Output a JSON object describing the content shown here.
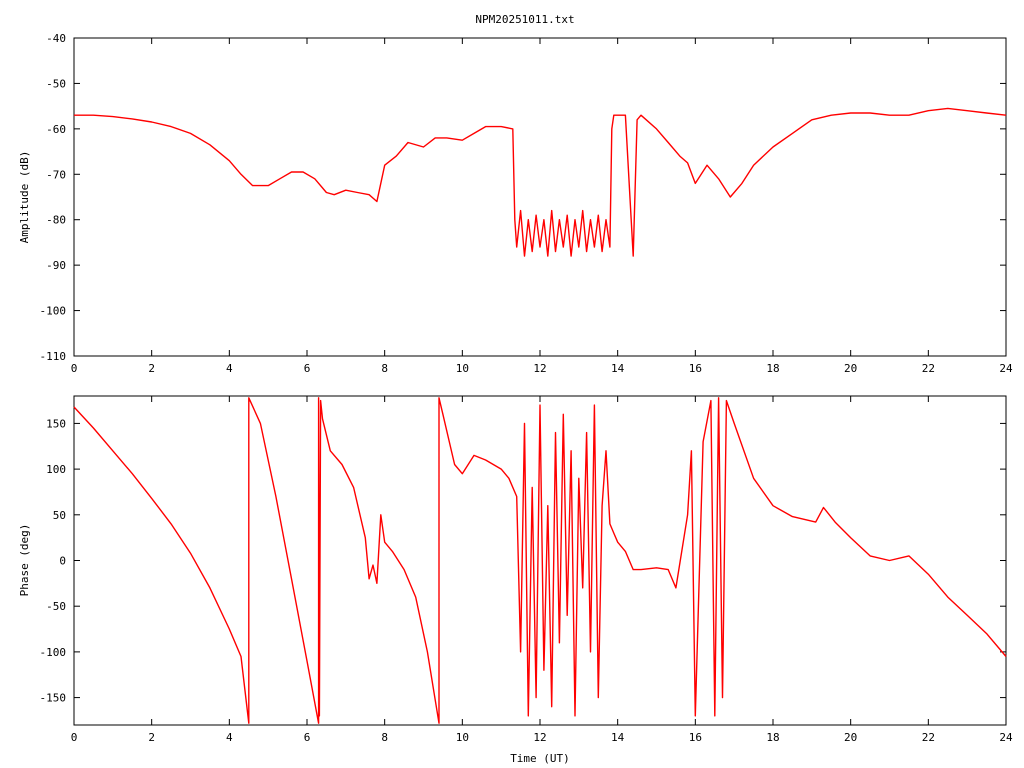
{
  "chart_data": [
    {
      "type": "line",
      "title": "NPM20251011.txt",
      "xlabel": "",
      "ylabel": "Amplitude (dB)",
      "xlim": [
        0,
        24
      ],
      "ylim": [
        -110,
        -40
      ],
      "xticks": [
        0,
        2,
        4,
        6,
        8,
        10,
        12,
        14,
        16,
        18,
        20,
        22,
        24
      ],
      "yticks": [
        -110,
        -100,
        -90,
        -80,
        -70,
        -60,
        -50,
        -40
      ],
      "grid": false,
      "color": "#ff0000",
      "series": [
        {
          "x": [
            0,
            0.5,
            1,
            1.5,
            2,
            2.5,
            3,
            3.5,
            4,
            4.3,
            4.6,
            5,
            5.3,
            5.6,
            5.9,
            6.2,
            6.5,
            6.7,
            7,
            7.3,
            7.6,
            7.8,
            8,
            8.3,
            8.6,
            9,
            9.3,
            9.6,
            10,
            10.3,
            10.6,
            11,
            11.3,
            11.35,
            11.4,
            11.5,
            11.6,
            11.7,
            11.8,
            11.9,
            12,
            12.1,
            12.2,
            12.3,
            12.4,
            12.5,
            12.6,
            12.7,
            12.8,
            12.9,
            13,
            13.1,
            13.2,
            13.3,
            13.4,
            13.5,
            13.6,
            13.7,
            13.8,
            13.85,
            13.9,
            14,
            14.2,
            14.4,
            14.5,
            14.6,
            15,
            15.3,
            15.6,
            15.8,
            16,
            16.3,
            16.6,
            16.9,
            17.2,
            17.5,
            18,
            18.5,
            19,
            19.5,
            20,
            20.5,
            21,
            21.5,
            22,
            22.5,
            23,
            23.5,
            24
          ],
          "y": [
            -57,
            -57,
            -57.3,
            -57.8,
            -58.5,
            -59.5,
            -61,
            -63.5,
            -67,
            -70,
            -72.5,
            -72.5,
            -71,
            -69.5,
            -69.5,
            -71,
            -74,
            -74.5,
            -73.5,
            -74,
            -74.5,
            -76,
            -68,
            -66,
            -63,
            -64,
            -62,
            -62,
            -62.5,
            -61,
            -59.5,
            -59.5,
            -60,
            -80,
            -86,
            -78,
            -88,
            -80,
            -87,
            -79,
            -86,
            -80,
            -88,
            -78,
            -87,
            -80,
            -86,
            -79,
            -88,
            -80,
            -86,
            -78,
            -87,
            -80,
            -86,
            -79,
            -87,
            -80,
            -86,
            -60,
            -57,
            -57,
            -57,
            -88,
            -58,
            -57,
            -60,
            -63,
            -66,
            -67.5,
            -72,
            -68,
            -71,
            -75,
            -72,
            -68,
            -64,
            -61,
            -58,
            -57,
            -56.5,
            -56.5,
            -57,
            -57,
            -56,
            -55.5,
            -56,
            -56.5,
            -57
          ]
        }
      ]
    },
    {
      "type": "line",
      "title": "",
      "xlabel": "Time (UT)",
      "ylabel": "Phase (deg)",
      "xlim": [
        0,
        24
      ],
      "ylim": [
        -180,
        180
      ],
      "xticks": [
        0,
        2,
        4,
        6,
        8,
        10,
        12,
        14,
        16,
        18,
        20,
        22,
        24
      ],
      "yticks": [
        -150,
        -100,
        -50,
        0,
        50,
        100,
        150
      ],
      "grid": false,
      "color": "#ff0000",
      "series": [
        {
          "x": [
            0,
            0.5,
            1,
            1.5,
            2,
            2.5,
            3,
            3.5,
            4,
            4.3,
            4.5,
            4.5,
            4.8,
            5.2,
            5.6,
            6,
            6.3,
            6.3,
            6.32,
            6.35,
            6.4,
            6.6,
            6.9,
            7.2,
            7.5,
            7.6,
            7.7,
            7.8,
            7.9,
            8,
            8.2,
            8.5,
            8.8,
            9.1,
            9.4,
            9.4,
            9.5,
            9.8,
            10,
            10.3,
            10.6,
            11,
            11.2,
            11.4,
            11.5,
            11.6,
            11.7,
            11.8,
            11.9,
            12,
            12.1,
            12.2,
            12.3,
            12.4,
            12.5,
            12.6,
            12.7,
            12.8,
            12.9,
            13,
            13.1,
            13.2,
            13.3,
            13.4,
            13.5,
            13.6,
            13.7,
            13.8,
            13.9,
            14,
            14.2,
            14.4,
            14.6,
            15,
            15.3,
            15.5,
            15.8,
            15.9,
            16,
            16.2,
            16.4,
            16.5,
            16.6,
            16.7,
            16.8,
            17,
            17.5,
            18,
            18.5,
            19.1,
            19.3,
            19.6,
            20,
            20.5,
            21,
            21.5,
            22,
            22.5,
            23,
            23.5,
            24
          ],
          "y": [
            168,
            145,
            120,
            95,
            68,
            40,
            8,
            -30,
            -75,
            -105,
            -178,
            178,
            150,
            70,
            -20,
            -110,
            -178,
            178,
            -170,
            175,
            155,
            120,
            105,
            80,
            25,
            -20,
            -5,
            -25,
            50,
            20,
            10,
            -10,
            -40,
            -100,
            -178,
            178,
            160,
            105,
            95,
            115,
            110,
            100,
            90,
            70,
            -100,
            150,
            -170,
            80,
            -150,
            170,
            -120,
            60,
            -160,
            140,
            -90,
            160,
            -60,
            120,
            -170,
            90,
            -30,
            140,
            -100,
            170,
            -150,
            60,
            120,
            40,
            30,
            20,
            10,
            -10,
            -10,
            -8,
            -10,
            -30,
            50,
            120,
            -170,
            130,
            175,
            -170,
            178,
            -150,
            175,
            150,
            90,
            60,
            48,
            42,
            58,
            42,
            25,
            5,
            0,
            5,
            -15,
            -40,
            -60,
            -80,
            -105
          ]
        }
      ]
    }
  ]
}
